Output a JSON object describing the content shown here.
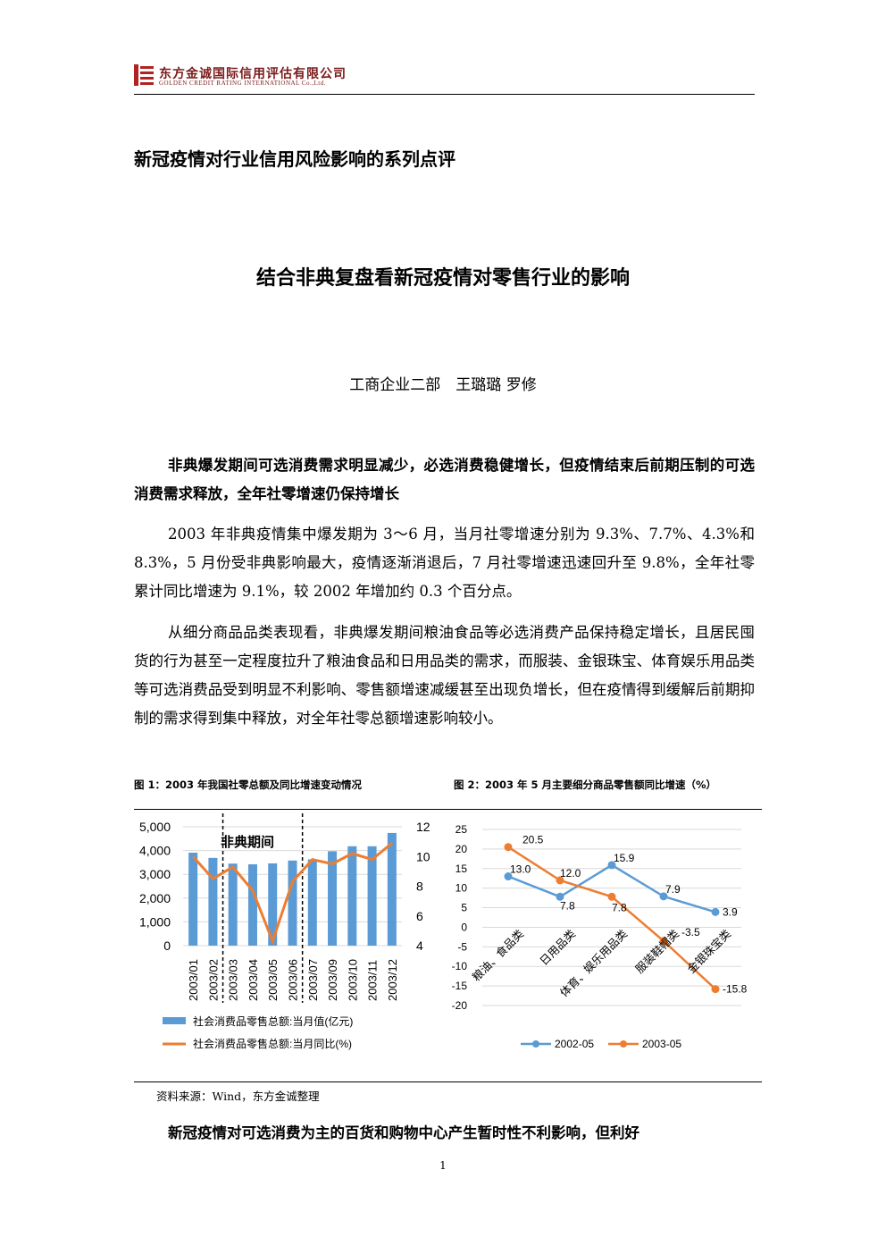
{
  "header": {
    "company_cn": "东方金诚国际信用评估有限公司",
    "company_en": "GOLDEN CREDIT RATING INTERNATIONAL Co.,Ltd."
  },
  "series_title": "新冠疫情对行业信用风险影响的系列点评",
  "title": "结合非典复盘看新冠疫情对零售行业的影响",
  "authors": "工商企业二部　王璐璐 罗修",
  "sections": [
    {
      "heading": "非典爆发期间可选消费需求明显减少，必选消费稳健增长，但疫情结束后前期压制的可选消费需求释放，全年社零增速仍保持增长",
      "paragraphs": [
        "2003 年非典疫情集中爆发期为 3～6 月，当月社零增速分别为 9.3%、7.7%、4.3%和 8.3%，5 月份受非典影响最大，疫情逐渐消退后，7 月社零增速迅速回升至 9.8%，全年社零累计同比增速为 9.1%，较 2002 年增加约 0.3 个百分点。",
        "从细分商品品类表现看，非典爆发期间粮油食品等必选消费产品保持稳定增长，且居民囤货的行为甚至一定程度拉升了粮油食品和日用品类的需求，而服装、金银珠宝、体育娱乐用品类等可选消费品受到明显不利影响、零售额增速减缓甚至出现负增长，但在疫情得到缓解后前期抑制的需求得到集中释放，对全年社零总额增速影响较小。"
      ]
    }
  ],
  "figure1": {
    "caption": "图 1：2003 年我国社零总额及同比增速变动情况",
    "annotation": "非典期间",
    "legend_bar": "社会消费品零售总额:当月值(亿元)",
    "legend_line": "社会消费品零售总额:当月同比(%)"
  },
  "figure2": {
    "caption": "图 2：2003 年 5 月主要细分商品零售额同比增速（%）"
  },
  "chart_data": [
    {
      "type": "bar",
      "categories": [
        "2003/01",
        "2003/02",
        "2003/03",
        "2003/04",
        "2003/05",
        "2003/06",
        "2003/07",
        "2003/09",
        "2003/10",
        "2003/11",
        "2003/12"
      ],
      "series": [
        {
          "name": "社会消费品零售总额:当月值(亿元)",
          "type": "bar",
          "axis": "left",
          "values": [
            3910,
            3690,
            3450,
            3420,
            3460,
            3580,
            3630,
            3970,
            4180,
            4180,
            4740
          ]
        },
        {
          "name": "社会消费品零售总额:当月同比(%)",
          "type": "line",
          "axis": "right",
          "values": [
            10.0,
            8.5,
            9.3,
            7.7,
            4.3,
            8.3,
            9.8,
            9.5,
            10.2,
            9.8,
            10.9
          ]
        }
      ],
      "y_left": {
        "ticks": [
          0,
          1000,
          2000,
          3000,
          4000,
          5000
        ],
        "tick_labels": [
          "0",
          "1,000",
          "2,000",
          "3,000",
          "4,000",
          "5,000"
        ],
        "lim": [
          0,
          5000
        ]
      },
      "y_right": {
        "ticks": [
          4,
          6,
          8,
          10,
          12
        ],
        "lim": [
          4,
          12
        ]
      },
      "shaded_period": [
        "2003/03",
        "2003/06"
      ],
      "grid": true
    },
    {
      "type": "line",
      "categories": [
        "粮油、食品类",
        "日用品类",
        "体育、娱乐用品类",
        "服装鞋帽类",
        "金银珠宝类"
      ],
      "series": [
        {
          "name": "2002-05",
          "color": "#5b9bd5",
          "values": [
            13.0,
            7.8,
            15.9,
            7.9,
            3.9
          ],
          "labels": [
            "13.0",
            "7.8",
            "15.9",
            "7.9",
            "3.9"
          ]
        },
        {
          "name": "2003-05",
          "color": "#ed7d31",
          "values": [
            20.5,
            12.0,
            7.8,
            -3.5,
            -15.8
          ],
          "labels": [
            "20.5",
            "12.0",
            "7.8",
            "-3.5",
            "-15.8"
          ]
        }
      ],
      "y_ticks": [
        25,
        20,
        15,
        10,
        5,
        0,
        -5,
        -10,
        -15,
        -20
      ],
      "ylim": [
        -20,
        25
      ],
      "grid": true
    }
  ],
  "source": "资料来源：Wind，东方金诚整理",
  "next_heading": "新冠疫情对可选消费为主的百货和购物中心产生暂时性不利影响，但利好",
  "page_number": "1"
}
